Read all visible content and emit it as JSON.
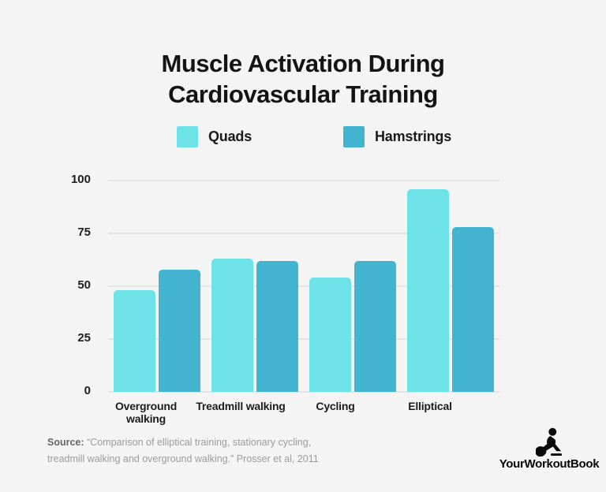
{
  "title": {
    "line1": "Muscle Activation During",
    "line2": "Cardiovascular Training"
  },
  "chart_data": {
    "type": "bar",
    "categories": [
      "Overground walking",
      "Treadmill walking",
      "Cycling",
      "Elliptical"
    ],
    "series": [
      {
        "name": "Quads",
        "color": "#6de2e7",
        "values": [
          48,
          63,
          54,
          96
        ]
      },
      {
        "name": "Hamstrings",
        "color": "#42b4d0",
        "values": [
          58,
          62,
          62,
          78
        ]
      }
    ],
    "title": "Muscle Activation During Cardiovascular Training",
    "xlabel": "",
    "ylabel": "",
    "ylim": [
      0,
      100
    ],
    "yticks": [
      0,
      25,
      50,
      75,
      100
    ],
    "grid": true,
    "legend_position": "top"
  },
  "legend": {
    "items": [
      {
        "label": "Quads",
        "color": "#6de2e7"
      },
      {
        "label": "Hamstrings",
        "color": "#42b4d0"
      }
    ]
  },
  "footer": {
    "source_label": "Source:",
    "source_text": "“Comparison of elliptical training, stationary cycling, treadmill walking and overground walking.” Prosser et al, 2011",
    "logo_text": "YourWorkoutBook"
  },
  "colors": {
    "background": "#f4f4f5",
    "gridline": "#e4e4e4",
    "title_text": "#141414",
    "axis_text": "#1d1d1d",
    "source_text": "#9b9b9b"
  }
}
